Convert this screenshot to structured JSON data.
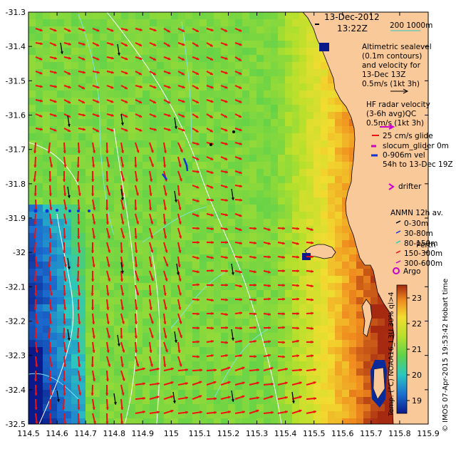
{
  "header": {
    "date": "13-Dec-2012",
    "time": "13:22Z",
    "scale_label": "200  1000m"
  },
  "axes": {
    "y_ticks": [
      "-31.3",
      "-31.4",
      "-31.5",
      "-31.6",
      "-31.7",
      "-31.8",
      "-31.9",
      "-32",
      "-32.1",
      "-32.2",
      "-32.3",
      "-32.4",
      "-32.5"
    ],
    "x_ticks": [
      "114.5",
      "114.6",
      "114.7",
      "114.8",
      "114.9",
      "115",
      "115.1",
      "115.2",
      "115.3",
      "115.4",
      "115.5",
      "115.6",
      "115.7",
      "115.8",
      "115.9"
    ],
    "lon_range": [
      114.5,
      115.9
    ],
    "lat_range": [
      -32.5,
      -31.3
    ]
  },
  "legend": {
    "altimetry": [
      "Altimetric sealevel",
      "(0.1m contours)",
      "and velocity for",
      "13-Dec 13Z",
      "0.5m/s (1kt 3h)"
    ],
    "hf_radar": [
      "HF radar velocity",
      "(3-6h avg)QC",
      "0.5m/s (1kt 3h)"
    ],
    "glider": [
      "25 cm/s glide",
      "slocum_glider 0m",
      "0-906m vel",
      "54h to 13-Dec 19Z"
    ],
    "drifter": "drifter",
    "anmn_title": "ANMN 12h av.",
    "anmn": [
      "0-30m",
      "30-80m",
      "80-150m",
      "150-300m",
      "300-600m"
    ],
    "argo": "Argo",
    "place": "Perth"
  },
  "colorbar": {
    "label": "Temp. (°C) NOAA16_L3U 30% ql>4",
    "ticks": [
      "23",
      "22",
      "21",
      "20",
      "19"
    ],
    "range": [
      18.5,
      23.5
    ]
  },
  "credit": "© IMOS 07-Apr-2015 19:53:42 Hobart time",
  "colors": {
    "land": "#f9c99a",
    "arrow_hf": "#ee1111",
    "arrow_alt": "#000000",
    "glider": "#cc00cc",
    "anmn_blue": "#1133dd",
    "contour": "#ddeeff"
  }
}
